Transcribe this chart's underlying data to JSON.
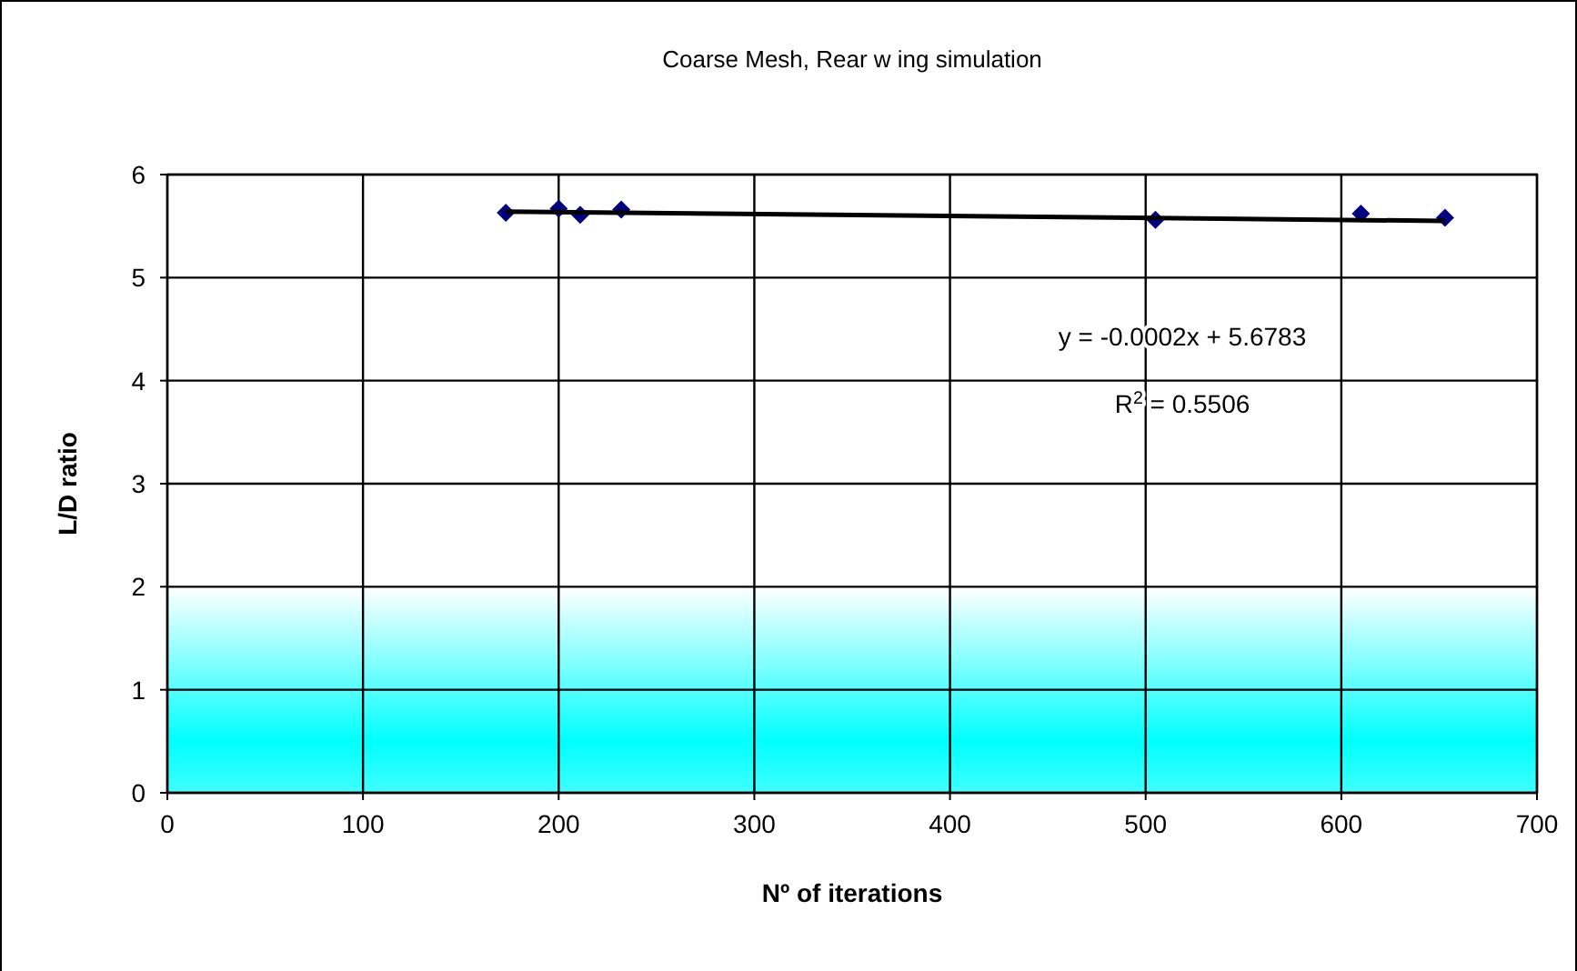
{
  "chart_data": {
    "type": "scatter",
    "title": "Coarse Mesh, Rear w ing simulation",
    "xlabel": "Nº of iterations",
    "ylabel": "L/D ratio",
    "xlim": [
      0,
      700
    ],
    "xticks": [
      0,
      100,
      200,
      300,
      400,
      500,
      600,
      700
    ],
    "ylim": [
      0,
      6
    ],
    "yticks": [
      0,
      1,
      2,
      3,
      4,
      5,
      6
    ],
    "grid": true,
    "marker": "diamond",
    "series": [
      {
        "color": "#000080",
        "x": [
          173,
          200,
          211,
          232,
          505,
          610,
          653
        ],
        "values": [
          5.63,
          5.67,
          5.61,
          5.66,
          5.56,
          5.62,
          5.58
        ]
      },
      {
        "type": "line",
        "color": "#000000",
        "marker": "none",
        "x": [
          173,
          653
        ],
        "values": [
          5.64,
          5.55
        ]
      }
    ],
    "bands": [
      {
        "axis": "y",
        "from": 0,
        "to": 2,
        "color": "#00ffff"
      }
    ],
    "annotations": [
      "y = -0.0002x + 5.6783",
      "R$^{2}$ = 0.5506"
    ]
  }
}
